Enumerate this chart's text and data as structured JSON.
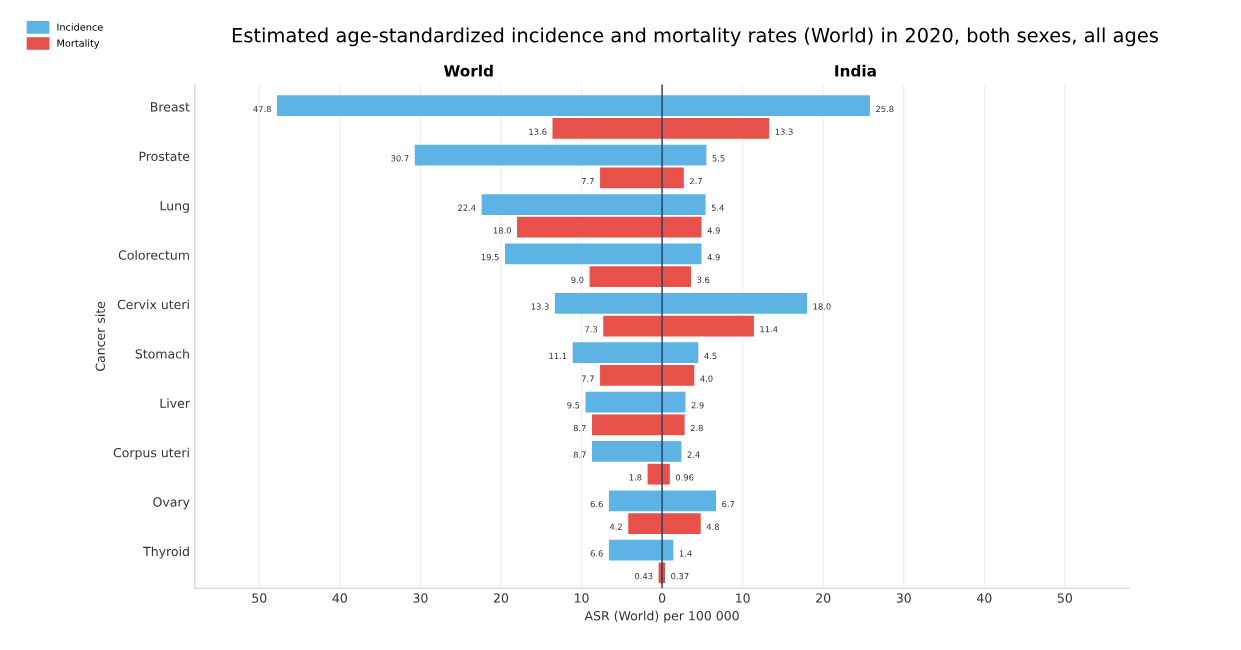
{
  "chart_data": {
    "type": "bar",
    "orientation": "horizontal",
    "title": "Estimated age-standardized incidence and mortality rates (World) in 2020, both sexes, all ages",
    "xlabel": "ASR (World) per 100 000",
    "ylabel": "Cancer site",
    "annotations": [
      "World",
      "India"
    ],
    "categories": [
      "Breast",
      "Prostate",
      "Lung",
      "Colorectum",
      "Cervix uteri",
      "Stomach",
      "Liver",
      "Corpus uteri",
      "Ovary",
      "Thyroid"
    ],
    "series": [
      {
        "name": "Incidence",
        "color": "#5cb3e4",
        "base": [
          -47.8,
          -30.7,
          -22.4,
          -19.5,
          -13.3,
          -11.1,
          -9.5,
          -8.7,
          -6.6,
          -6.6
        ],
        "values": [
          47.8,
          30.7,
          22.4,
          19.5,
          13.3,
          11.1,
          9.5,
          8.7,
          6.6,
          6.6
        ],
        "value_labels": [
          "47.8",
          "30.7",
          "22.4",
          "19.5",
          "13.3",
          "11.1",
          "9.5",
          "8.7",
          "6.6",
          "6.6"
        ]
      },
      {
        "name": "Mortality",
        "color": "#e8504a",
        "base": [
          -13.6,
          -7.7,
          -18.0,
          -9.0,
          -7.3,
          -7.7,
          -8.7,
          -1.8,
          -4.2,
          -0.43
        ],
        "values": [
          13.6,
          7.7,
          18.0,
          9.0,
          7.3,
          7.7,
          8.7,
          1.8,
          4.2,
          0.43
        ],
        "value_labels": [
          "13.6",
          "7.7",
          "18.0",
          "9.0",
          "7.3",
          "7.7",
          "8.7",
          "1.8",
          "4.2",
          "0.43"
        ]
      },
      {
        "color": "#5cb3e4",
        "values": [
          25.8,
          5.5,
          5.4,
          4.9,
          18.0,
          4.5,
          2.9,
          2.4,
          6.7,
          1.4
        ],
        "value_labels": [
          "25.8",
          "5.5",
          "5.4",
          "4.9",
          "18.0",
          "4.5",
          "2.9",
          "2.4",
          "6.7",
          "1.4"
        ]
      },
      {
        "color": "#e8504a",
        "values": [
          13.3,
          2.7,
          4.9,
          3.6,
          11.4,
          4.0,
          2.8,
          0.96,
          4.8,
          0.37
        ],
        "value_labels": [
          "13.3",
          "2.7",
          "4.9",
          "3.6",
          "11.4",
          "4.0",
          "2.8",
          "0.96",
          "4.8",
          "0.37"
        ]
      }
    ],
    "xlim": [
      -58,
      58
    ],
    "xticks": [
      {
        "value": -50,
        "label": "50"
      },
      {
        "value": -40,
        "label": "40"
      },
      {
        "value": -30,
        "label": "30"
      },
      {
        "value": -20,
        "label": "20"
      },
      {
        "value": -10,
        "label": "10"
      },
      0,
      10,
      20,
      30,
      40,
      50
    ],
    "ref_lines": [
      {
        "axis": "x",
        "value": 0,
        "color": "#1f3a5f"
      }
    ],
    "grid": "x",
    "legend": "top left"
  }
}
